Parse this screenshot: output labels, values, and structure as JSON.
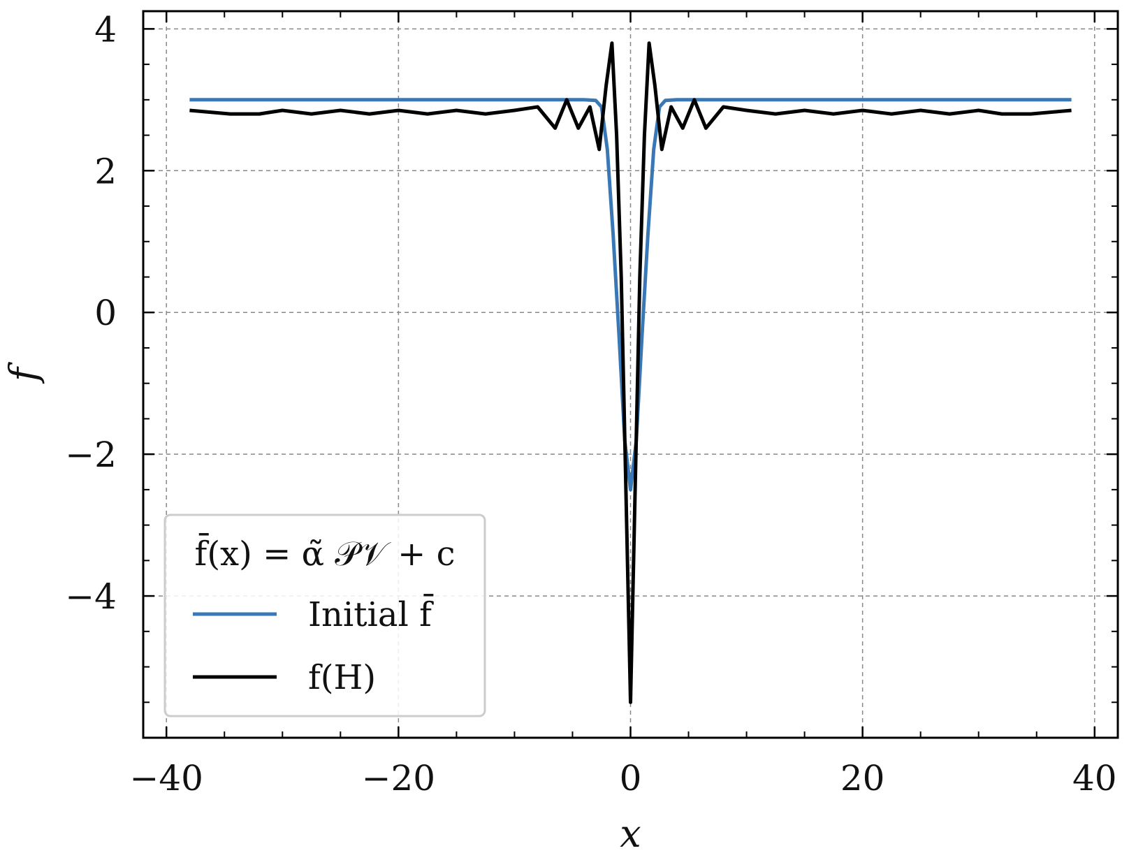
{
  "chart_data": {
    "type": "line",
    "xlabel": "x",
    "ylabel": "f",
    "xlim": [
      -42,
      42
    ],
    "ylim": [
      -6,
      4.25
    ],
    "xticks": [
      -40,
      -20,
      0,
      20,
      40
    ],
    "xtick_labels": [
      "−40",
      "−20",
      "0",
      "20",
      "40"
    ],
    "yticks": [
      -4,
      -2,
      0,
      2,
      4
    ],
    "ytick_labels": [
      "−4",
      "−2",
      "0",
      "2",
      "4"
    ],
    "grid": true,
    "legend": {
      "placement": "lower-left",
      "title": "f̄(x) = α̃ 𝒫𝒱 + c"
    },
    "series": [
      {
        "name": "Initial f̄",
        "color": "#3a78b5",
        "x": [
          -38,
          -4,
          -3,
          -2.5,
          -2,
          -1.5,
          -1,
          -0.5,
          0,
          0.5,
          1,
          1.5,
          2,
          2.5,
          3,
          4,
          38
        ],
        "y": [
          3.0,
          3.0,
          2.99,
          2.9,
          2.3,
          1.1,
          -0.3,
          -1.8,
          -2.5,
          -1.8,
          -0.3,
          1.1,
          2.3,
          2.9,
          2.99,
          3.0,
          3.0
        ]
      },
      {
        "name": "f(H)",
        "color": "#000000",
        "x": [
          -38,
          -34.5,
          -32,
          -30,
          -27.5,
          -25,
          -22.5,
          -20,
          -17.5,
          -15,
          -12.5,
          -10,
          -8,
          -6.5,
          -5.5,
          -4.5,
          -3.5,
          -2.7,
          -2.1,
          -1.6,
          -1.2,
          -0.8,
          -0.4,
          0,
          0.4,
          0.8,
          1.2,
          1.6,
          2.1,
          2.7,
          3.5,
          4.5,
          5.5,
          6.5,
          8,
          10,
          12.5,
          15,
          17.5,
          20,
          22.5,
          25,
          27.5,
          30,
          32,
          34.5,
          38
        ],
        "y": [
          2.85,
          2.8,
          2.8,
          2.85,
          2.8,
          2.85,
          2.8,
          2.85,
          2.8,
          2.85,
          2.8,
          2.85,
          2.9,
          2.6,
          3.0,
          2.6,
          2.9,
          2.3,
          3.2,
          3.8,
          2.5,
          0.5,
          -2.5,
          -5.5,
          -2.5,
          0.5,
          2.5,
          3.8,
          3.2,
          2.3,
          2.9,
          2.6,
          3.0,
          2.6,
          2.9,
          2.85,
          2.8,
          2.85,
          2.8,
          2.85,
          2.8,
          2.85,
          2.8,
          2.85,
          2.8,
          2.8,
          2.85
        ]
      }
    ]
  }
}
